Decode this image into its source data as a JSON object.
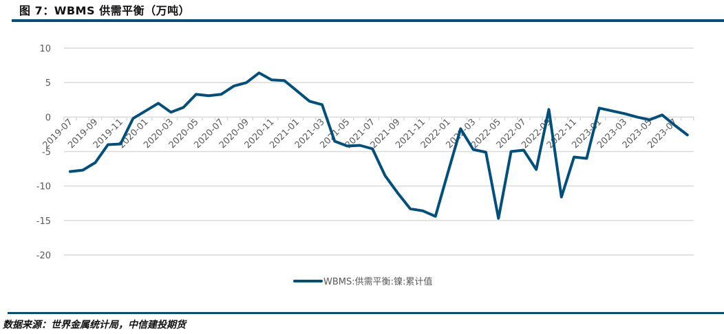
{
  "header": {
    "title": "图 7：WBMS 供需平衡（万吨）"
  },
  "footer": {
    "source": "数据来源：世界金属统计局，中信建投期货"
  },
  "colors": {
    "accent": "#004F7C",
    "grid": "#D9D9D9",
    "text": "#595959"
  },
  "chart_data": {
    "type": "line",
    "title": "",
    "xlabel": "",
    "ylabel": "",
    "ylim": [
      -20,
      10
    ],
    "yticks": [
      10,
      5,
      0,
      -5,
      -10,
      -15,
      -20
    ],
    "grid": true,
    "legend_position": "bottom",
    "x": [
      "2019-07",
      "2019-08",
      "2019-09",
      "2019-10",
      "2019-11",
      "2019-12",
      "2020-01",
      "2020-02",
      "2020-03",
      "2020-04",
      "2020-05",
      "2020-06",
      "2020-07",
      "2020-08",
      "2020-09",
      "2020-10",
      "2020-11",
      "2020-12",
      "2021-01",
      "2021-02",
      "2021-03",
      "2021-04",
      "2021-05",
      "2021-06",
      "2021-07",
      "2021-08",
      "2021-09",
      "2021-10",
      "2021-11",
      "2021-12",
      "2022-01",
      "2022-02",
      "2022-03",
      "2022-04",
      "2022-05",
      "2022-06",
      "2022-07",
      "2022-08",
      "2022-09",
      "2022-10",
      "2022-11",
      "2022-12",
      "2023-01",
      "2023-02",
      "2023-03",
      "2023-04",
      "2023-05",
      "2023-06",
      "2023-07",
      "2023-08"
    ],
    "xtick_labels": [
      "2019-07",
      "2019-09",
      "2019-11",
      "2020-01",
      "2020-03",
      "2020-05",
      "2020-07",
      "2020-09",
      "2020-11",
      "2021-01",
      "2021-03",
      "2021-05",
      "2021-07",
      "2021-09",
      "2021-11",
      "2022-01",
      "2022-03",
      "2022-05",
      "2022-07",
      "2022-09",
      "2022-11",
      "2023-01",
      "2023-03",
      "2023-05",
      "2023-07"
    ],
    "series": [
      {
        "name": "WBMS:供需平衡:镍:累计值",
        "color": "#004F7C",
        "values": [
          -7.9,
          -7.7,
          -6.6,
          -4.0,
          -3.9,
          -0.2,
          0.9,
          2.0,
          0.7,
          1.4,
          3.3,
          3.1,
          3.3,
          4.5,
          5.0,
          6.4,
          5.4,
          5.3,
          3.8,
          2.3,
          1.8,
          -3.5,
          -4.2,
          -4.1,
          -4.6,
          -8.5,
          -11.0,
          -13.3,
          -13.6,
          -14.4,
          -8.0,
          -1.7,
          -4.7,
          -5.1,
          -14.7,
          -5.0,
          -4.8,
          -7.6,
          1.1,
          -11.6,
          -5.8,
          -6.0,
          1.3,
          0.9,
          0.5,
          0.0,
          -0.4,
          0.3,
          -1.2,
          -2.6
        ]
      }
    ]
  }
}
